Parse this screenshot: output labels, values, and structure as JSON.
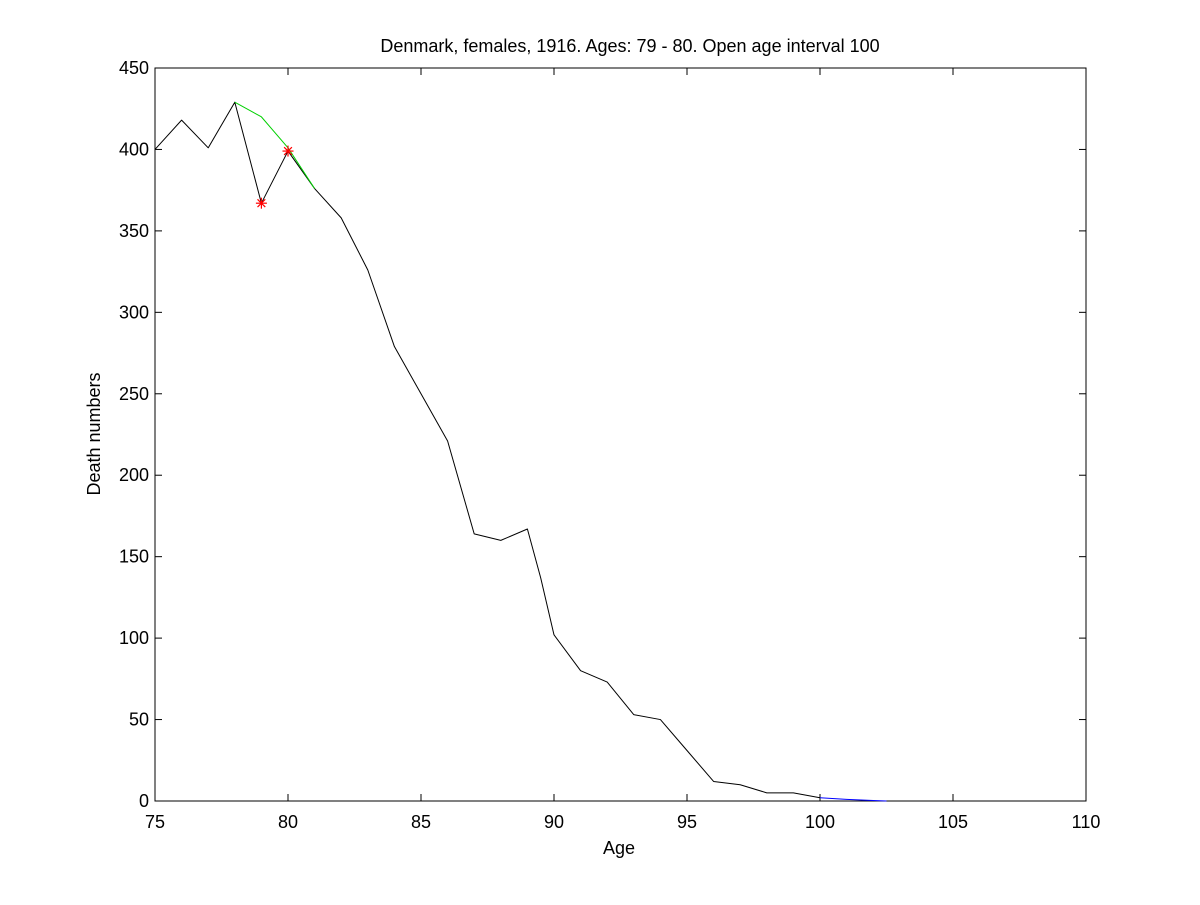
{
  "chart_data": {
    "type": "line",
    "title": "Denmark, females, 1916. Ages: 79 - 80. Open age interval 100",
    "xlabel": "Age",
    "ylabel": "Death numbers",
    "xlim": [
      75,
      110
    ],
    "ylim": [
      0,
      450
    ],
    "xticks": [
      75,
      80,
      85,
      90,
      95,
      100,
      105,
      110
    ],
    "yticks": [
      0,
      50,
      100,
      150,
      200,
      250,
      300,
      350,
      400,
      450
    ],
    "grid": false,
    "series": [
      {
        "color": "#000000",
        "x": [
          75,
          76,
          77,
          78,
          79,
          80,
          81,
          82,
          83,
          84,
          85,
          86,
          87,
          88,
          89,
          89.5,
          90,
          91,
          92,
          93,
          94,
          95,
          96,
          97,
          98,
          99,
          100
        ],
        "y": [
          400,
          418,
          401,
          429,
          367,
          399,
          376,
          358,
          326,
          279,
          250,
          221,
          164,
          160,
          167,
          137,
          102,
          80,
          73,
          53,
          50,
          31,
          12,
          10,
          5,
          5,
          2
        ]
      },
      {
        "color": "#00d000",
        "x": [
          78,
          79,
          80,
          81
        ],
        "y": [
          429,
          420,
          401,
          376
        ]
      },
      {
        "color": "#0000ff",
        "x": [
          100,
          101,
          102,
          102.5
        ],
        "y": [
          2,
          1,
          0.3,
          0
        ]
      },
      {
        "color": "#ff0000",
        "marker": "*",
        "x": [
          79,
          80
        ],
        "y": [
          367,
          399
        ]
      }
    ]
  }
}
